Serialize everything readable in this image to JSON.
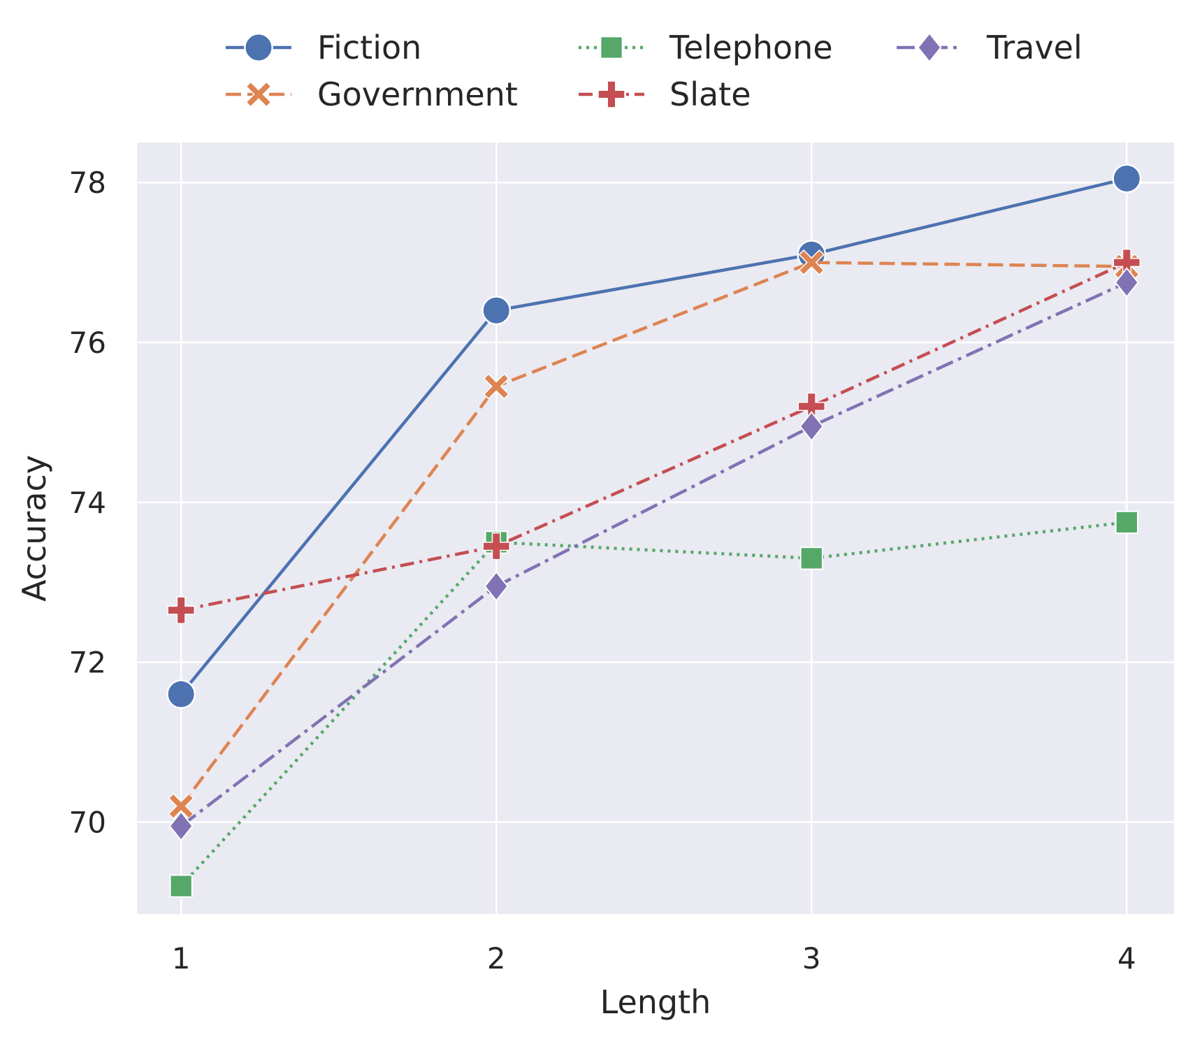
{
  "chart_data": {
    "type": "line",
    "xlabel": "Length",
    "ylabel": "Accuracy",
    "x": [
      1,
      2,
      3,
      4
    ],
    "xlim": [
      0.86,
      4.15
    ],
    "ylim": [
      68.85,
      78.5
    ],
    "xticks": [
      1,
      2,
      3,
      4
    ],
    "yticks": [
      70,
      72,
      74,
      76,
      78
    ],
    "grid": true,
    "legend_position": "top",
    "series": [
      {
        "name": "Fiction",
        "values": [
          71.6,
          76.4,
          77.1,
          78.05
        ],
        "color": "#4c72b0",
        "marker": "circle",
        "dash": "solid"
      },
      {
        "name": "Government",
        "values": [
          70.2,
          75.45,
          77.0,
          76.95
        ],
        "color": "#dd8452",
        "marker": "x",
        "dash": "dashed"
      },
      {
        "name": "Telephone",
        "values": [
          69.2,
          73.5,
          73.3,
          73.75
        ],
        "color": "#55a868",
        "marker": "square",
        "dash": "dotted"
      },
      {
        "name": "Slate",
        "values": [
          72.65,
          73.45,
          75.2,
          77.0
        ],
        "color": "#c44e52",
        "marker": "plus",
        "dash": "dashdot"
      },
      {
        "name": "Travel",
        "values": [
          69.95,
          72.95,
          74.95,
          76.75
        ],
        "color": "#8172b3",
        "marker": "diamond",
        "dash": "dashdot2"
      }
    ]
  }
}
